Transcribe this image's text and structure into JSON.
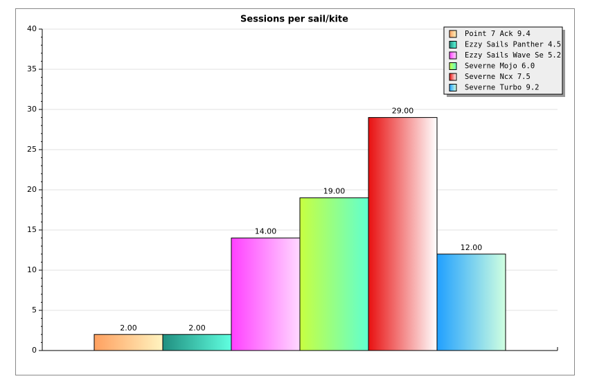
{
  "chart_data": {
    "type": "bar",
    "title": "Sessions per sail/kite",
    "categories": [
      null
    ],
    "series": [
      {
        "name": "Point 7 Ack 9.4",
        "color": "#ffa060",
        "color2": "#fff4c0",
        "values": [
          2
        ],
        "value_labels": [
          "2.00"
        ]
      },
      {
        "name": "Ezzy Sails Panther 4.5",
        "color": "#208f80",
        "color2": "#60ffe0",
        "values": [
          2
        ],
        "value_labels": [
          "2.00"
        ]
      },
      {
        "name": "Ezzy Sails Wave Se 5.2",
        "color": "#ff40ff",
        "color2": "#ffd8ff",
        "values": [
          14
        ],
        "value_labels": [
          "14.00"
        ]
      },
      {
        "name": "Severne Mojo 6.0",
        "color": "#c8ff40",
        "color2": "#60ffd0",
        "values": [
          19
        ],
        "value_labels": [
          "19.00"
        ]
      },
      {
        "name": "Severne Ncx 7.5",
        "color": "#e81010",
        "color2": "#ffffff",
        "values": [
          29
        ],
        "value_labels": [
          "29.00"
        ]
      },
      {
        "name": "Severne Turbo 9.2",
        "color": "#20a0ff",
        "color2": "#d0ffe0",
        "values": [
          12
        ],
        "value_labels": [
          "12.00"
        ]
      }
    ],
    "ylim": [
      0,
      40
    ],
    "yticks": [
      0,
      5,
      10,
      15,
      20,
      25,
      30,
      35,
      40
    ],
    "grid": true,
    "legend": "top-right"
  }
}
